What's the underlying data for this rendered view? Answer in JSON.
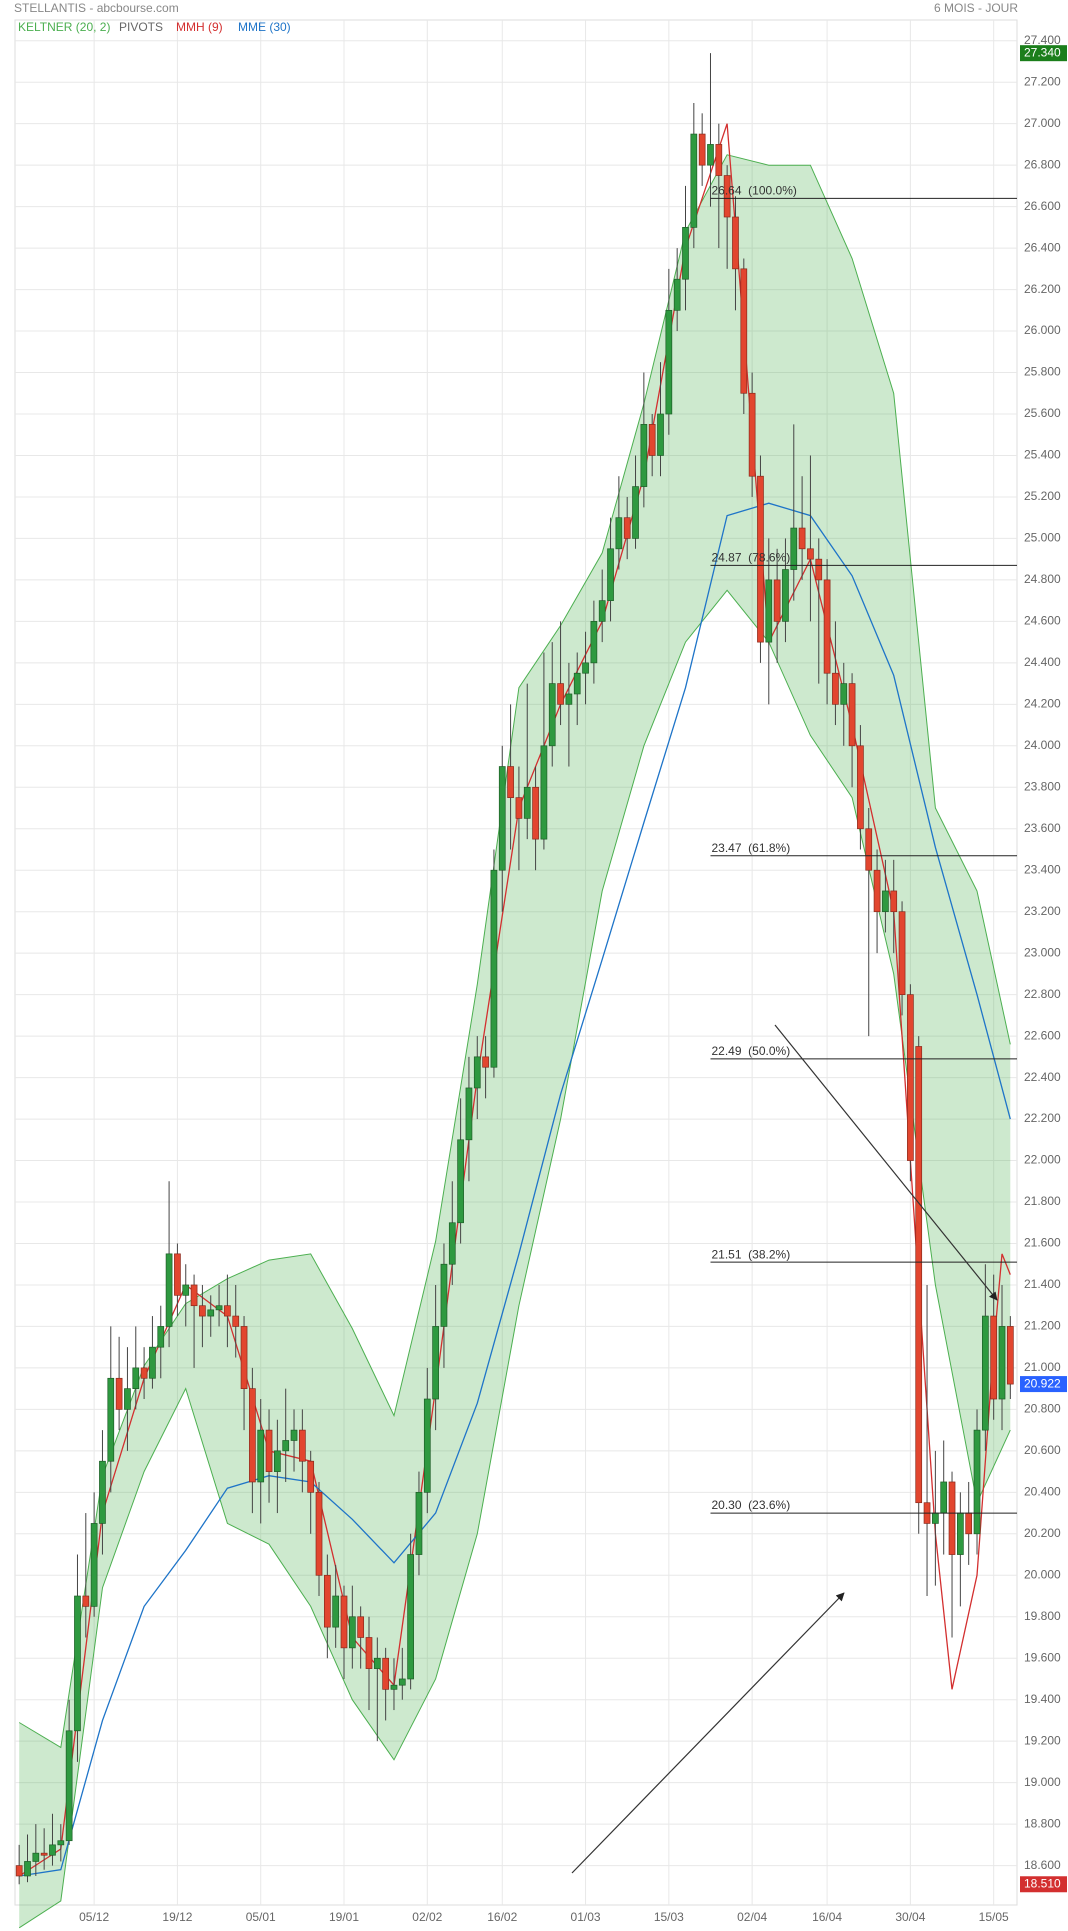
{
  "chart_data": {
    "type": "candlestick",
    "title": "STELLANTIS - abcbourse.com",
    "period": "6 MOIS - JOUR",
    "up_color": "#2e9940",
    "down_color": "#e2462f",
    "grid": true,
    "ylim": [
      18.41,
      27.5
    ],
    "yticks": [
      {
        "value": 27.4,
        "label": "27.400"
      },
      {
        "value": 27.2,
        "label": "27.200"
      },
      {
        "value": 27,
        "label": "27.000"
      },
      {
        "value": 26.8,
        "label": "26.800"
      },
      {
        "value": 26.6,
        "label": "26.600"
      },
      {
        "value": 26.4,
        "label": "26.400"
      },
      {
        "value": 26.2,
        "label": "26.200"
      },
      {
        "value": 26,
        "label": "26.000"
      },
      {
        "value": 25.8,
        "label": "25.800"
      },
      {
        "value": 25.6,
        "label": "25.600"
      },
      {
        "value": 25.4,
        "label": "25.400"
      },
      {
        "value": 25.2,
        "label": "25.200"
      },
      {
        "value": 25,
        "label": "25.000"
      },
      {
        "value": 24.8,
        "label": "24.800"
      },
      {
        "value": 24.6,
        "label": "24.600"
      },
      {
        "value": 24.4,
        "label": "24.400"
      },
      {
        "value": 24.2,
        "label": "24.200"
      },
      {
        "value": 24,
        "label": "24.000"
      },
      {
        "value": 23.8,
        "label": "23.800"
      },
      {
        "value": 23.6,
        "label": "23.600"
      },
      {
        "value": 23.4,
        "label": "23.400"
      },
      {
        "value": 23.2,
        "label": "23.200"
      },
      {
        "value": 23,
        "label": "23.000"
      },
      {
        "value": 22.8,
        "label": "22.800"
      },
      {
        "value": 22.6,
        "label": "22.600"
      },
      {
        "value": 22.4,
        "label": "22.400"
      },
      {
        "value": 22.2,
        "label": "22.200"
      },
      {
        "value": 22,
        "label": "22.000"
      },
      {
        "value": 21.8,
        "label": "21.800"
      },
      {
        "value": 21.6,
        "label": "21.600"
      },
      {
        "value": 21.4,
        "label": "21.400"
      },
      {
        "value": 21.2,
        "label": "21.200"
      },
      {
        "value": 21,
        "label": "21.000"
      },
      {
        "value": 20.8,
        "label": "20.800"
      },
      {
        "value": 20.6,
        "label": "20.600"
      },
      {
        "value": 20.4,
        "label": "20.400"
      },
      {
        "value": 20.2,
        "label": "20.200"
      },
      {
        "value": 20,
        "label": "20.000"
      },
      {
        "value": 19.8,
        "label": "19.800"
      },
      {
        "value": 19.6,
        "label": "19.600"
      },
      {
        "value": 19.4,
        "label": "19.400"
      },
      {
        "value": 19.2,
        "label": "19.200"
      },
      {
        "value": 19,
        "label": "19.000"
      },
      {
        "value": 18.8,
        "label": "18.800"
      },
      {
        "value": 18.6,
        "label": "18.600"
      }
    ],
    "categories": [
      null,
      null,
      null,
      null,
      null,
      null,
      null,
      null,
      null,
      "05/12",
      null,
      null,
      null,
      null,
      null,
      null,
      null,
      null,
      null,
      "19/12",
      null,
      null,
      null,
      null,
      null,
      null,
      null,
      null,
      null,
      "05/01",
      null,
      null,
      null,
      null,
      null,
      null,
      null,
      null,
      null,
      "19/01",
      null,
      null,
      null,
      null,
      null,
      null,
      null,
      null,
      null,
      "02/02",
      null,
      null,
      null,
      null,
      null,
      null,
      null,
      null,
      "16/02",
      null,
      null,
      null,
      null,
      null,
      null,
      null,
      null,
      null,
      "01/03",
      null,
      null,
      null,
      null,
      null,
      null,
      null,
      null,
      null,
      "15/03",
      null,
      null,
      null,
      null,
      null,
      null,
      null,
      null,
      null,
      "02/04",
      null,
      null,
      null,
      null,
      null,
      null,
      null,
      null,
      "16/04",
      null,
      null,
      null,
      null,
      null,
      null,
      null,
      null,
      null,
      "30/04",
      null,
      null,
      null,
      null,
      null,
      null,
      null,
      null,
      null,
      "15/05",
      null,
      null
    ],
    "ohlc": [
      [
        18.6,
        18.7,
        18.51,
        18.55
      ],
      [
        18.55,
        18.75,
        18.52,
        18.62
      ],
      [
        18.62,
        18.8,
        18.55,
        18.66
      ],
      [
        18.66,
        18.78,
        18.58,
        18.65
      ],
      [
        18.65,
        18.85,
        18.6,
        18.7
      ],
      [
        18.7,
        18.8,
        18.62,
        18.72
      ],
      [
        18.72,
        19.4,
        18.7,
        19.25
      ],
      [
        19.25,
        20.1,
        19.1,
        19.9
      ],
      [
        19.9,
        20.3,
        19.7,
        19.85
      ],
      [
        19.85,
        20.4,
        19.8,
        20.25
      ],
      [
        20.25,
        20.7,
        20.1,
        20.55
      ],
      [
        20.55,
        21.2,
        20.4,
        20.95
      ],
      [
        20.95,
        21.15,
        20.7,
        20.8
      ],
      [
        20.8,
        21.1,
        20.6,
        20.9
      ],
      [
        20.9,
        21.2,
        20.8,
        21
      ],
      [
        21,
        21.1,
        20.85,
        20.95
      ],
      [
        20.95,
        21.25,
        20.9,
        21.1
      ],
      [
        21.1,
        21.3,
        20.95,
        21.2
      ],
      [
        21.2,
        21.9,
        21.1,
        21.55
      ],
      [
        21.55,
        21.6,
        21.25,
        21.35
      ],
      [
        21.35,
        21.5,
        21.2,
        21.4
      ],
      [
        21.4,
        21.45,
        21,
        21.3
      ],
      [
        21.3,
        21.4,
        21.1,
        21.25
      ],
      [
        21.25,
        21.35,
        21.15,
        21.28
      ],
      [
        21.28,
        21.4,
        21.2,
        21.3
      ],
      [
        21.3,
        21.45,
        21.1,
        21.25
      ],
      [
        21.25,
        21.4,
        21.05,
        21.2
      ],
      [
        21.2,
        21.25,
        20.7,
        20.9
      ],
      [
        20.9,
        21,
        20.3,
        20.45
      ],
      [
        20.45,
        20.85,
        20.25,
        20.7
      ],
      [
        20.7,
        20.8,
        20.35,
        20.5
      ],
      [
        20.5,
        20.75,
        20.3,
        20.6
      ],
      [
        20.6,
        20.9,
        20.45,
        20.65
      ],
      [
        20.65,
        20.8,
        20.5,
        20.7
      ],
      [
        20.7,
        20.8,
        20.4,
        20.55
      ],
      [
        20.55,
        20.6,
        20.2,
        20.4
      ],
      [
        20.4,
        20.45,
        19.9,
        20
      ],
      [
        20,
        20.1,
        19.6,
        19.75
      ],
      [
        19.75,
        20.05,
        19.65,
        19.9
      ],
      [
        19.9,
        19.95,
        19.5,
        19.65
      ],
      [
        19.65,
        19.95,
        19.55,
        19.8
      ],
      [
        19.8,
        19.85,
        19.55,
        19.7
      ],
      [
        19.7,
        19.8,
        19.35,
        19.55
      ],
      [
        19.55,
        19.7,
        19.2,
        19.6
      ],
      [
        19.6,
        19.65,
        19.3,
        19.45
      ],
      [
        19.45,
        19.6,
        19.35,
        19.47
      ],
      [
        19.47,
        19.65,
        19.4,
        19.5
      ],
      [
        19.5,
        20.2,
        19.45,
        20.1
      ],
      [
        20.1,
        20.5,
        20,
        20.4
      ],
      [
        20.4,
        21,
        20.3,
        20.85
      ],
      [
        20.85,
        21.4,
        20.7,
        21.2
      ],
      [
        21.2,
        21.6,
        21,
        21.5
      ],
      [
        21.5,
        21.9,
        21.4,
        21.7
      ],
      [
        21.7,
        22.3,
        21.6,
        22.1
      ],
      [
        22.1,
        22.5,
        21.9,
        22.35
      ],
      [
        22.35,
        22.6,
        22.2,
        22.5
      ],
      [
        22.5,
        22.6,
        22.3,
        22.45
      ],
      [
        22.45,
        23.5,
        22.4,
        23.4
      ],
      [
        23.4,
        24,
        23.2,
        23.9
      ],
      [
        23.9,
        24.2,
        23.5,
        23.75
      ],
      [
        23.75,
        23.9,
        23.4,
        23.65
      ],
      [
        23.65,
        24.3,
        23.55,
        23.8
      ],
      [
        23.8,
        23.9,
        23.4,
        23.55
      ],
      [
        23.55,
        24.45,
        23.5,
        24
      ],
      [
        24,
        24.5,
        23.9,
        24.3
      ],
      [
        24.3,
        24.6,
        24.1,
        24.2
      ],
      [
        24.2,
        24.4,
        23.9,
        24.25
      ],
      [
        24.25,
        24.45,
        24.1,
        24.35
      ],
      [
        24.35,
        24.55,
        24.2,
        24.4
      ],
      [
        24.4,
        24.7,
        24.3,
        24.6
      ],
      [
        24.6,
        24.85,
        24.5,
        24.7
      ],
      [
        24.7,
        25.1,
        24.6,
        24.95
      ],
      [
        24.95,
        25.3,
        24.85,
        25.1
      ],
      [
        25.1,
        25.2,
        24.9,
        25
      ],
      [
        25,
        25.4,
        24.95,
        25.25
      ],
      [
        25.25,
        25.8,
        25.15,
        25.55
      ],
      [
        25.55,
        25.6,
        25.3,
        25.4
      ],
      [
        25.4,
        25.85,
        25.3,
        25.6
      ],
      [
        25.6,
        26.3,
        25.5,
        26.1
      ],
      [
        26.1,
        26.4,
        26,
        26.25
      ],
      [
        26.25,
        26.7,
        26.1,
        26.5
      ],
      [
        26.5,
        27.1,
        26.4,
        26.95
      ],
      [
        26.95,
        27.05,
        26.7,
        26.8
      ],
      [
        26.8,
        27.34,
        26.6,
        26.9
      ],
      [
        26.9,
        27,
        26.4,
        26.75
      ],
      [
        26.75,
        26.8,
        26.3,
        26.55
      ],
      [
        26.55,
        26.65,
        26.1,
        26.3
      ],
      [
        26.3,
        26.35,
        25.6,
        25.7
      ],
      [
        25.7,
        25.8,
        25.2,
        25.3
      ],
      [
        25.3,
        25.4,
        24.4,
        24.5
      ],
      [
        24.5,
        25,
        24.2,
        24.8
      ],
      [
        24.8,
        24.95,
        24.4,
        24.6
      ],
      [
        24.6,
        25,
        24.5,
        24.85
      ],
      [
        24.85,
        25.55,
        24.7,
        25.05
      ],
      [
        25.05,
        25.3,
        24.8,
        24.95
      ],
      [
        24.95,
        25.4,
        24.6,
        24.9
      ],
      [
        24.9,
        25,
        24.3,
        24.8
      ],
      [
        24.8,
        24.9,
        24.2,
        24.35
      ],
      [
        24.35,
        24.6,
        24.1,
        24.2
      ],
      [
        24.2,
        24.4,
        24,
        24.3
      ],
      [
        24.3,
        24.35,
        23.8,
        24
      ],
      [
        24,
        24.1,
        23.5,
        23.6
      ],
      [
        23.6,
        23.7,
        22.6,
        23.4
      ],
      [
        23.4,
        23.5,
        23,
        23.2
      ],
      [
        23.2,
        23.45,
        23.1,
        23.3
      ],
      [
        23.3,
        23.45,
        23,
        23.2
      ],
      [
        23.2,
        23.25,
        22.7,
        22.8
      ],
      [
        22.8,
        22.85,
        21.9,
        22
      ],
      [
        22.55,
        22.6,
        20.2,
        20.35
      ],
      [
        20.35,
        21.4,
        19.9,
        20.25
      ],
      [
        20.25,
        20.6,
        19.95,
        20.3
      ],
      [
        20.3,
        20.65,
        20.1,
        20.45
      ],
      [
        20.45,
        20.5,
        19.7,
        20.1
      ],
      [
        20.1,
        20.4,
        19.85,
        20.3
      ],
      [
        20.3,
        20.45,
        20.05,
        20.2
      ],
      [
        20.2,
        20.8,
        20.1,
        20.7
      ],
      [
        20.7,
        21.5,
        20.6,
        21.25
      ],
      [
        21.25,
        21.45,
        20.75,
        20.85
      ],
      [
        20.85,
        21.4,
        20.7,
        21.2
      ],
      [
        21.2,
        21.25,
        20.85,
        20.922
      ]
    ],
    "indicators": [
      {
        "name": "KELTNER (20, 2)",
        "color": "#4caf50",
        "x": [
          0,
          5,
          10,
          15,
          20,
          25,
          30,
          35,
          40,
          45,
          50,
          55,
          60,
          65,
          70,
          75,
          80,
          85,
          90,
          95,
          100,
          105,
          110,
          115,
          119
        ],
        "upper": [
          19.29,
          19.17,
          20.48,
          21.01,
          21.31,
          21.43,
          21.52,
          21.55,
          21.19,
          20.77,
          21.61,
          22.85,
          24.28,
          24.58,
          24.93,
          25.65,
          26.48,
          26.85,
          26.8,
          26.8,
          26.35,
          25.7,
          23.7,
          23.3,
          22.56
        ],
        "lower": [
          18.3,
          18.43,
          19.94,
          20.5,
          20.9,
          20.25,
          20.15,
          19.85,
          19.4,
          19.11,
          19.5,
          20.2,
          21.3,
          22.2,
          23.3,
          24,
          24.5,
          24.75,
          24.5,
          24.05,
          23.75,
          22.9,
          21.4,
          20.35,
          20.7
        ]
      },
      {
        "name": "PIVOTS",
        "color": "#666666"
      },
      {
        "name": "MMH (9)",
        "color": "#d32f2f",
        "x": [
          0,
          5,
          10,
          15,
          20,
          25,
          30,
          35,
          40,
          45,
          50,
          55,
          60,
          65,
          70,
          75,
          80,
          85,
          90,
          95,
          100,
          105,
          110,
          112,
          115,
          117,
          118,
          119
        ],
        "values": [
          18.55,
          18.68,
          20.3,
          20.95,
          21.4,
          21.25,
          20.6,
          20.55,
          19.7,
          19.47,
          20.9,
          22.4,
          23.7,
          24.2,
          24.6,
          25.3,
          26.4,
          27,
          24.5,
          24.9,
          24.1,
          23.2,
          20.2,
          19.45,
          20,
          21.1,
          21.55,
          21.45
        ]
      },
      {
        "name": "MME (30)",
        "color": "#1e74c8",
        "x": [
          0,
          5,
          10,
          15,
          20,
          25,
          30,
          35,
          40,
          45,
          50,
          55,
          60,
          65,
          70,
          75,
          80,
          85,
          90,
          95,
          100,
          105,
          110,
          115,
          119
        ],
        "values": [
          18.55,
          18.58,
          19.3,
          19.85,
          20.12,
          20.42,
          20.48,
          20.45,
          20.27,
          20.06,
          20.3,
          20.83,
          21.55,
          22.32,
          22.97,
          23.63,
          24.28,
          25.11,
          25.17,
          25.11,
          24.82,
          24.34,
          23.51,
          22.8,
          22.2
        ]
      }
    ],
    "fib_levels": [
      {
        "value": 26.64,
        "label": "26.64  (100.0%)"
      },
      {
        "value": 24.87,
        "label": "24.87  (78.6%)"
      },
      {
        "value": 23.47,
        "label": "23.47  (61.8%)"
      },
      {
        "value": 22.49,
        "label": "22.49  (50.0%)"
      },
      {
        "value": 21.51,
        "label": "21.51  (38.2%)"
      },
      {
        "value": 20.3,
        "label": "20.30  (23.6%)"
      }
    ],
    "price_tags": [
      {
        "value": 27.34,
        "label": "27.340",
        "color": "#1b7e1b"
      },
      {
        "value": 20.922,
        "label": "20.922",
        "color": "#2962ff"
      },
      {
        "value": 18.51,
        "label": "18.510",
        "color": "#d32f2f"
      }
    ]
  }
}
